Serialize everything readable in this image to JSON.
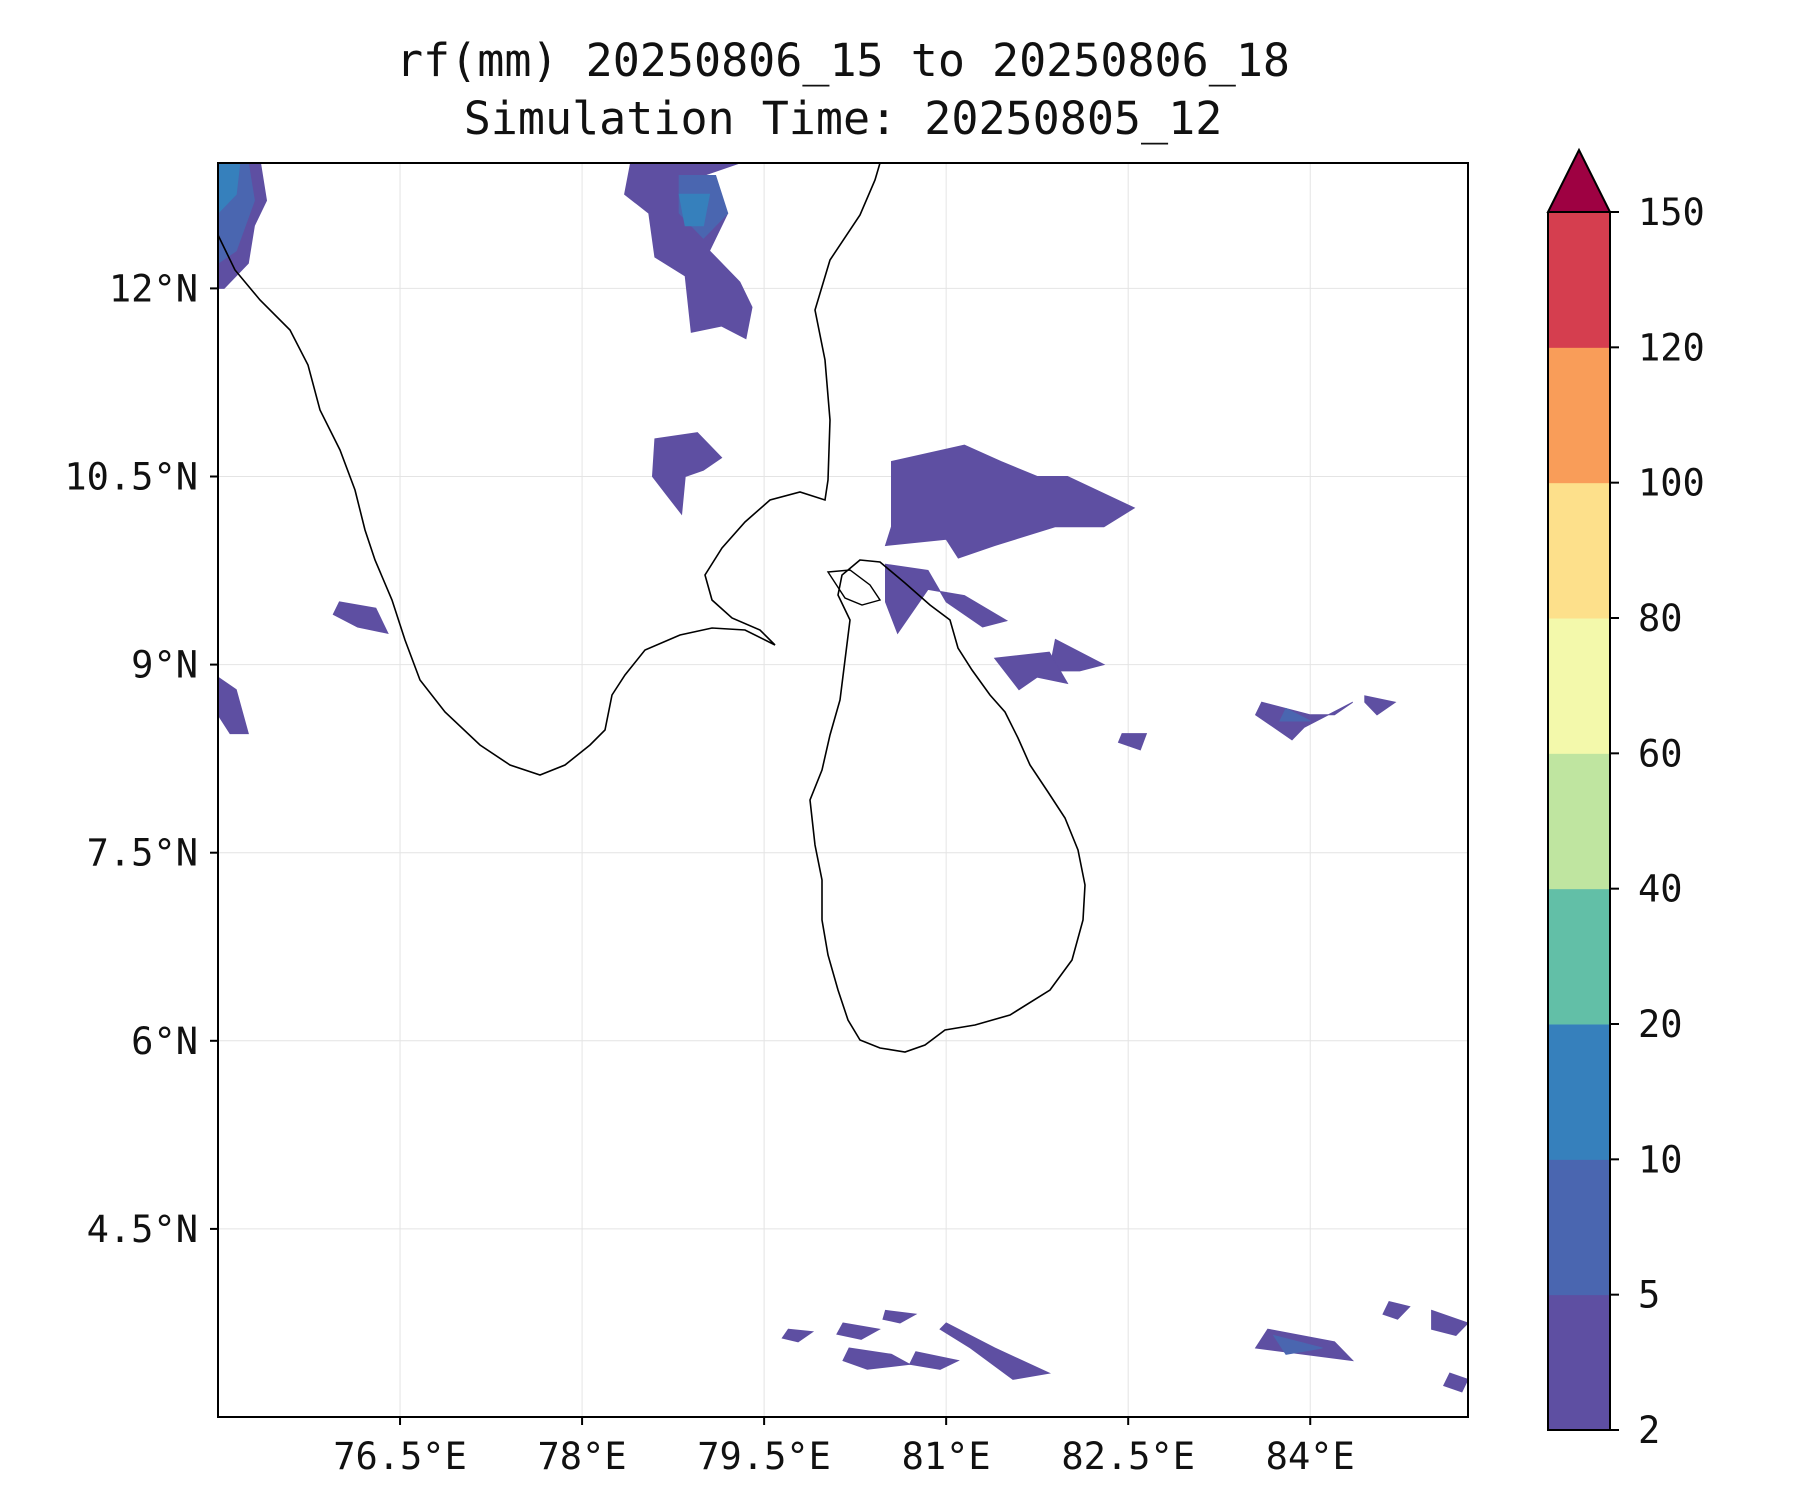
{
  "title": {
    "line1": "rf(mm) 20250806_15 to 20250806_18",
    "line2": "Simulation Time: 20250805_12"
  },
  "map": {
    "lon_range": [
      75.0,
      85.3
    ],
    "lat_range": [
      3.0,
      13.0
    ],
    "lon_ticks": [
      {
        "value": 76.5,
        "label": "76.5°E"
      },
      {
        "value": 78.0,
        "label": "78°E"
      },
      {
        "value": 79.5,
        "label": "79.5°E"
      },
      {
        "value": 81.0,
        "label": "81°E"
      },
      {
        "value": 82.5,
        "label": "82.5°E"
      },
      {
        "value": 84.0,
        "label": "84°E"
      }
    ],
    "lat_ticks": [
      {
        "value": 12.0,
        "label": "12°N"
      },
      {
        "value": 10.5,
        "label": "10.5°N"
      },
      {
        "value": 9.0,
        "label": "9°N"
      },
      {
        "value": 7.5,
        "label": "7.5°N"
      },
      {
        "value": 6.0,
        "label": "6°N"
      },
      {
        "value": 4.5,
        "label": "4.5°N"
      }
    ],
    "gridlines": true,
    "coastline_color": "#000000"
  },
  "colorbar": {
    "levels": [
      "2",
      "5",
      "10",
      "20",
      "40",
      "60",
      "80",
      "100",
      "120",
      "150"
    ],
    "colors": [
      "#5e4fa2",
      "#4a66b0",
      "#3680bc",
      "#62bfa7",
      "#bfe5a0",
      "#f3f9ab",
      "#fde08b",
      "#f99d59",
      "#d53e4f"
    ],
    "extend_color": "#9e0142",
    "extend": "max"
  },
  "rain_regions": [
    {
      "level": "2-5",
      "polygons": [
        [
          [
            75.0,
            13.0
          ],
          [
            75.35,
            13.0
          ],
          [
            75.4,
            12.7
          ],
          [
            75.3,
            12.5
          ],
          [
            75.25,
            12.2
          ],
          [
            75.05,
            12.0
          ],
          [
            75.0,
            12.0
          ]
        ],
        [
          [
            78.4,
            13.0
          ],
          [
            79.3,
            13.0
          ],
          [
            79.0,
            12.9
          ],
          [
            79.2,
            12.6
          ],
          [
            79.05,
            12.3
          ],
          [
            79.3,
            12.05
          ],
          [
            79.4,
            11.85
          ],
          [
            79.35,
            11.6
          ],
          [
            79.15,
            11.7
          ],
          [
            78.9,
            11.65
          ],
          [
            78.85,
            12.1
          ],
          [
            78.6,
            12.25
          ],
          [
            78.55,
            12.6
          ],
          [
            78.35,
            12.75
          ]
        ],
        [
          [
            78.6,
            10.8
          ],
          [
            78.95,
            10.85
          ],
          [
            79.15,
            10.65
          ],
          [
            79.0,
            10.55
          ],
          [
            78.85,
            10.5
          ],
          [
            78.82,
            10.2
          ],
          [
            78.7,
            10.35
          ],
          [
            78.58,
            10.5
          ]
        ],
        [
          [
            80.55,
            10.62
          ],
          [
            81.15,
            10.75
          ],
          [
            81.45,
            10.62
          ],
          [
            81.75,
            10.5
          ],
          [
            82.0,
            10.5
          ],
          [
            82.55,
            10.25
          ],
          [
            82.3,
            10.1
          ],
          [
            81.9,
            10.1
          ],
          [
            81.4,
            9.95
          ],
          [
            81.1,
            9.85
          ],
          [
            81.0,
            10.0
          ],
          [
            80.5,
            9.95
          ],
          [
            80.55,
            10.1
          ]
        ],
        [
          [
            80.5,
            9.8
          ],
          [
            80.85,
            9.75
          ],
          [
            81.0,
            9.5
          ],
          [
            81.3,
            9.3
          ],
          [
            81.5,
            9.35
          ],
          [
            81.15,
            9.55
          ],
          [
            80.85,
            9.6
          ],
          [
            80.6,
            9.25
          ],
          [
            80.5,
            9.5
          ]
        ],
        [
          [
            81.9,
            9.2
          ],
          [
            82.3,
            9.0
          ],
          [
            82.1,
            8.95
          ],
          [
            81.85,
            8.95
          ]
        ],
        [
          [
            81.4,
            9.05
          ],
          [
            81.85,
            9.1
          ],
          [
            82.0,
            8.85
          ],
          [
            81.75,
            8.9
          ],
          [
            81.6,
            8.8
          ]
        ],
        [
          [
            76.0,
            9.5
          ],
          [
            76.3,
            9.45
          ],
          [
            76.4,
            9.25
          ],
          [
            76.15,
            9.3
          ],
          [
            75.95,
            9.4
          ]
        ],
        [
          [
            75.0,
            8.9
          ],
          [
            75.15,
            8.8
          ],
          [
            75.25,
            8.45
          ],
          [
            75.1,
            8.45
          ],
          [
            75.0,
            8.6
          ]
        ],
        [
          [
            83.6,
            8.7
          ],
          [
            84.0,
            8.6
          ],
          [
            84.2,
            8.6
          ],
          [
            84.35,
            8.7
          ],
          [
            83.95,
            8.5
          ],
          [
            83.85,
            8.4
          ],
          [
            83.55,
            8.6
          ]
        ],
        [
          [
            84.45,
            8.75
          ],
          [
            84.7,
            8.7
          ],
          [
            84.55,
            8.6
          ],
          [
            84.45,
            8.7
          ]
        ],
        [
          [
            82.45,
            8.45
          ],
          [
            82.65,
            8.45
          ],
          [
            82.6,
            8.32
          ],
          [
            82.42,
            8.38
          ]
        ],
        [
          [
            83.65,
            3.7
          ],
          [
            84.2,
            3.6
          ],
          [
            84.35,
            3.45
          ],
          [
            83.55,
            3.55
          ]
        ],
        [
          [
            81.0,
            3.75
          ],
          [
            81.4,
            3.55
          ],
          [
            81.85,
            3.35
          ],
          [
            81.55,
            3.3
          ],
          [
            81.2,
            3.55
          ],
          [
            80.95,
            3.7
          ]
        ],
        [
          [
            80.2,
            3.55
          ],
          [
            80.55,
            3.5
          ],
          [
            80.7,
            3.42
          ],
          [
            80.35,
            3.38
          ],
          [
            80.15,
            3.45
          ]
        ],
        [
          [
            80.75,
            3.52
          ],
          [
            81.1,
            3.45
          ],
          [
            80.95,
            3.38
          ],
          [
            80.7,
            3.42
          ]
        ],
        [
          [
            80.5,
            3.85
          ],
          [
            80.75,
            3.82
          ],
          [
            80.62,
            3.75
          ],
          [
            80.48,
            3.78
          ]
        ],
        [
          [
            79.7,
            3.7
          ],
          [
            79.9,
            3.68
          ],
          [
            79.78,
            3.6
          ],
          [
            79.65,
            3.63
          ]
        ],
        [
          [
            80.15,
            3.75
          ],
          [
            80.45,
            3.7
          ],
          [
            80.3,
            3.62
          ],
          [
            80.1,
            3.66
          ]
        ],
        [
          [
            85.0,
            3.85
          ],
          [
            85.3,
            3.75
          ],
          [
            85.2,
            3.65
          ],
          [
            85.0,
            3.7
          ]
        ],
        [
          [
            84.65,
            3.92
          ],
          [
            84.82,
            3.88
          ],
          [
            84.72,
            3.78
          ],
          [
            84.6,
            3.82
          ]
        ],
        [
          [
            85.15,
            3.35
          ],
          [
            85.3,
            3.3
          ],
          [
            85.25,
            3.2
          ],
          [
            85.1,
            3.25
          ]
        ]
      ]
    },
    {
      "level": "5-10",
      "polygons": [
        [
          [
            75.0,
            13.0
          ],
          [
            75.25,
            13.0
          ],
          [
            75.3,
            12.7
          ],
          [
            75.15,
            12.3
          ],
          [
            75.0,
            12.2
          ]
        ],
        [
          [
            78.8,
            12.9
          ],
          [
            79.1,
            12.9
          ],
          [
            79.2,
            12.6
          ],
          [
            79.0,
            12.4
          ],
          [
            78.8,
            12.6
          ]
        ],
        [
          [
            83.7,
            3.65
          ],
          [
            84.1,
            3.55
          ],
          [
            83.8,
            3.5
          ]
        ],
        [
          [
            83.8,
            8.65
          ],
          [
            84.0,
            8.55
          ],
          [
            83.75,
            8.55
          ]
        ]
      ]
    },
    {
      "level": "10-20",
      "polygons": [
        [
          [
            75.0,
            13.0
          ],
          [
            75.18,
            13.0
          ],
          [
            75.15,
            12.75
          ],
          [
            75.0,
            12.6
          ]
        ],
        [
          [
            78.8,
            12.75
          ],
          [
            79.05,
            12.75
          ],
          [
            79.0,
            12.5
          ],
          [
            78.85,
            12.5
          ]
        ]
      ]
    }
  ]
}
